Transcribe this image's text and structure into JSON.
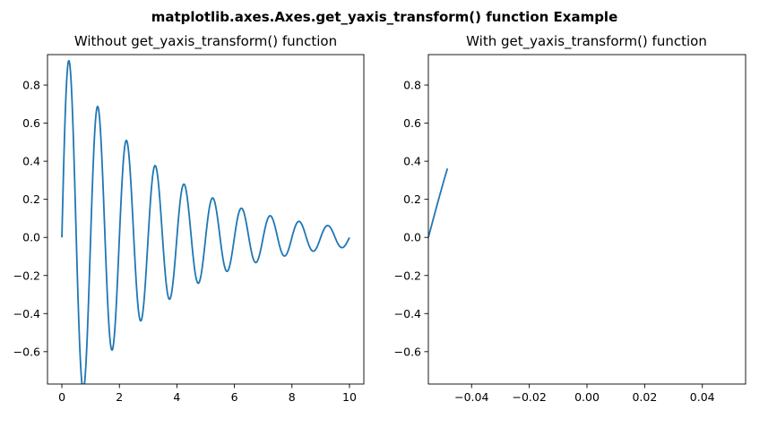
{
  "figure": {
    "suptitle": "matplotlib.axes.Axes.get_yaxis_transform() function Example"
  },
  "chart_data": [
    {
      "type": "line",
      "title": "Without get_yaxis_transform() function",
      "xlabel": "",
      "ylabel": "",
      "xlim": [
        -0.5,
        10.5
      ],
      "ylim": [
        -0.77,
        0.96
      ],
      "xticks": [
        0,
        2,
        4,
        6,
        8,
        10
      ],
      "xtick_labels": [
        "0",
        "2",
        "4",
        "6",
        "8",
        "10"
      ],
      "yticks": [
        -0.6,
        -0.4,
        -0.2,
        0.0,
        0.2,
        0.4,
        0.6,
        0.8
      ],
      "ytick_labels": [
        "−0.6",
        "−0.4",
        "−0.2",
        "0.0",
        "0.2",
        "0.4",
        "0.6",
        "0.8"
      ],
      "grid": false,
      "series": [
        {
          "color": "#1f77b4",
          "curve": {
            "form": "exp(-0.3*x) * sin(2*pi*x)",
            "x_start": 0,
            "x_end": 10,
            "samples": 600
          }
        }
      ]
    },
    {
      "type": "line",
      "title": "With get_yaxis_transform() function",
      "xlabel": "",
      "ylabel": "",
      "xlim": [
        -0.055,
        0.055
      ],
      "ylim": [
        -0.77,
        0.96
      ],
      "xticks": [
        -0.04,
        -0.02,
        0.0,
        0.02,
        0.04
      ],
      "xtick_labels": [
        "−0.04",
        "−0.02",
        "0.00",
        "0.02",
        "0.04"
      ],
      "yticks": [
        -0.6,
        -0.4,
        -0.2,
        0.0,
        0.2,
        0.4,
        0.6,
        0.8
      ],
      "ytick_labels": [
        "−0.6",
        "−0.4",
        "−0.2",
        "0.0",
        "0.2",
        "0.4",
        "0.6",
        "0.8"
      ],
      "grid": false,
      "series": [
        {
          "color": "#1f77b4",
          "curve": {
            "form": "exp(-0.3*x) * sin(2*pi*x)",
            "x_start": 0,
            "x_end": 0.06,
            "x_axis_fraction": true,
            "samples": 40
          }
        }
      ]
    }
  ]
}
